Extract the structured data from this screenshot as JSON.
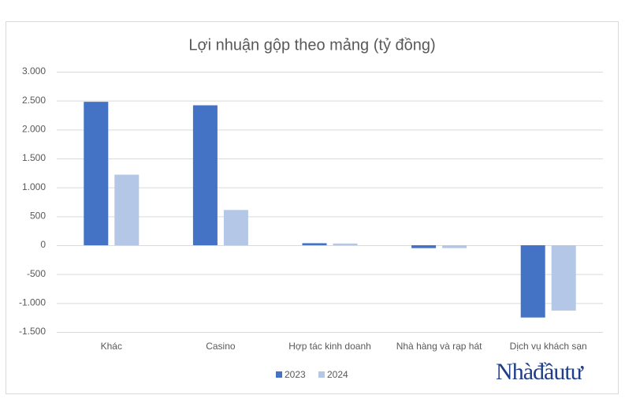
{
  "chart_data": {
    "type": "bar",
    "title": "Lợi nhuận gộp theo mảng (tỷ đồng)",
    "categories": [
      "Khác",
      "Casino",
      "Hợp tác kinh doanh",
      "Nhà hàng và rạp hát",
      "Dịch vụ khách sạn"
    ],
    "series": [
      {
        "name": "2023",
        "color": "#4472c4",
        "values": [
          2480,
          2420,
          35,
          -50,
          -1250
        ]
      },
      {
        "name": "2024",
        "color": "#b4c7e7",
        "values": [
          1220,
          610,
          30,
          -50,
          -1130
        ]
      }
    ],
    "ylim": [
      -1500,
      3000
    ],
    "yticks": [
      {
        "value": -1500,
        "label": "-1.500"
      },
      {
        "value": -1000,
        "label": "-1.000"
      },
      -500,
      0,
      500,
      {
        "value": 1000,
        "label": "1.000"
      },
      {
        "value": 1500,
        "label": "1.500"
      },
      {
        "value": 2000,
        "label": "2.000"
      },
      {
        "value": 2500,
        "label": "2.500"
      },
      {
        "value": 3000,
        "label": "3.000"
      }
    ],
    "grid": true,
    "legend": "bottom",
    "watermark": "Nhàđầutư"
  }
}
